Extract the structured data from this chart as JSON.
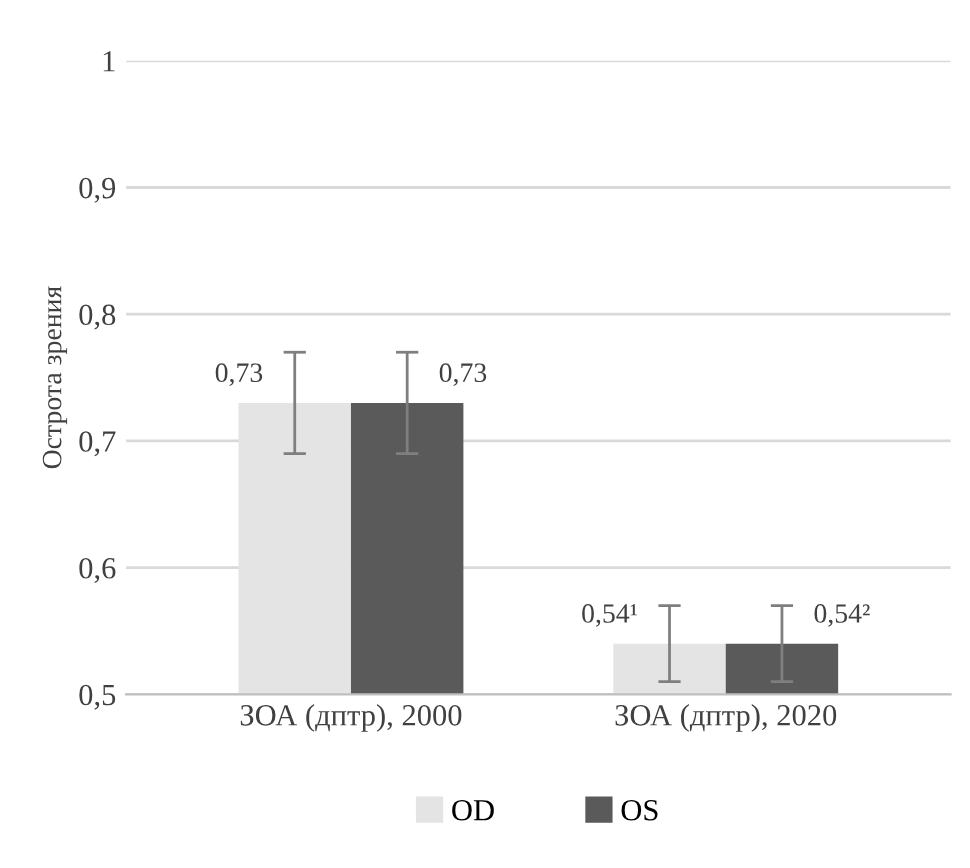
{
  "chart_data": {
    "type": "bar",
    "ylabel": "Острота зрения",
    "categories": [
      "ЗОА (дптр), 2000",
      "ЗОА (дптр), 2020"
    ],
    "series": [
      {
        "name": "OD",
        "color": "#e4e4e4",
        "values": [
          0.73,
          0.54
        ],
        "errors": [
          0.04,
          0.03
        ],
        "value_labels": [
          "0,73",
          "0,54¹"
        ]
      },
      {
        "name": "OS",
        "color": "#5a5a5a",
        "values": [
          0.73,
          0.54
        ],
        "errors": [
          0.04,
          0.03
        ],
        "value_labels": [
          "0,73",
          "0,54²"
        ]
      }
    ],
    "ylim": [
      0.5,
      1
    ],
    "yticks": [
      {
        "value": 0.5,
        "label": "0,5"
      },
      {
        "value": 0.6,
        "label": "0,6"
      },
      {
        "value": 0.7,
        "label": "0,7"
      },
      {
        "value": 0.8,
        "label": "0,8"
      },
      {
        "value": 0.9,
        "label": "0,9"
      },
      1
    ],
    "grid": "y",
    "legend": "bottom"
  }
}
